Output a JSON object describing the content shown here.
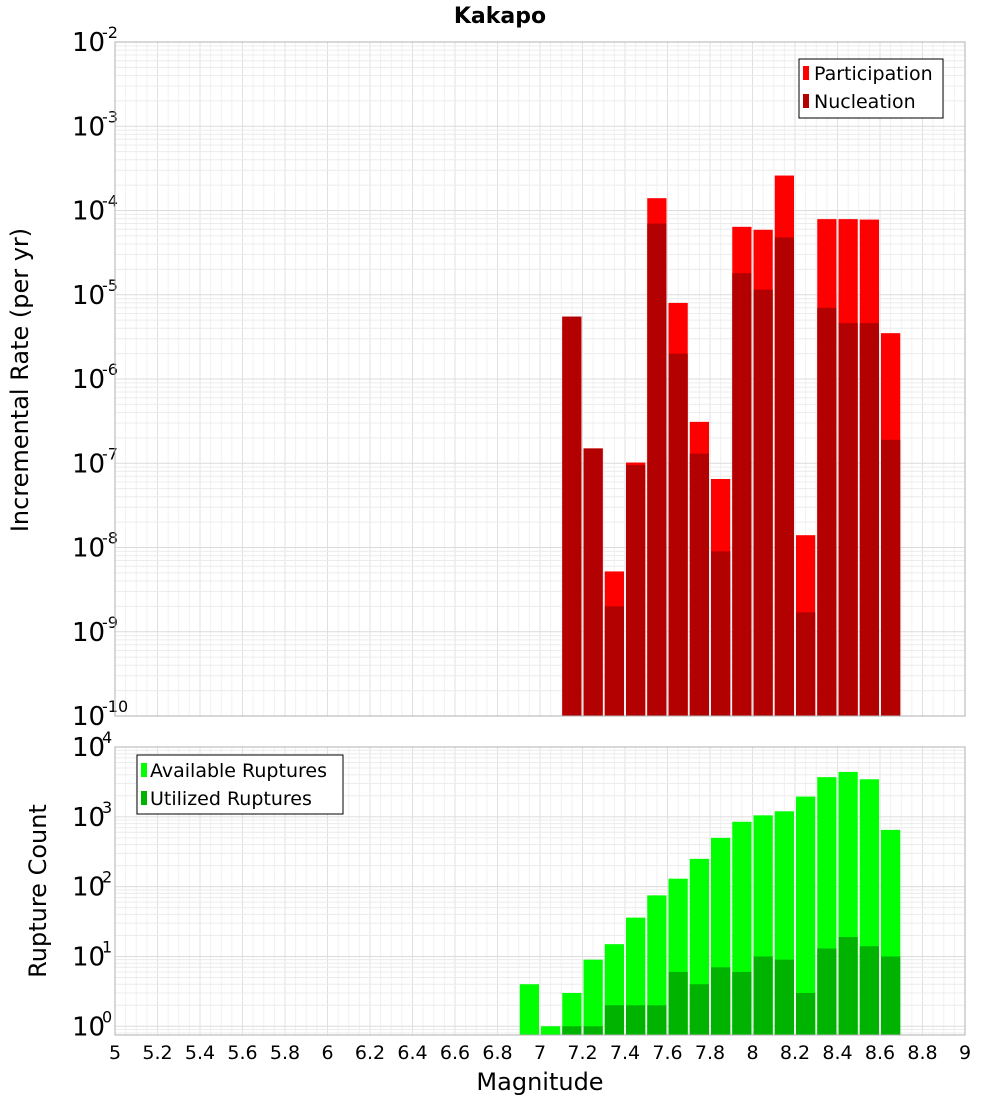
{
  "chart_data": [
    {
      "type": "bar",
      "title": "Kakapo",
      "ylabel": "Incremental Rate (per yr)",
      "yscale": "log",
      "ylim": [
        1e-10,
        0.01
      ],
      "xlim": [
        5,
        9
      ],
      "grid": true,
      "legend_position": "top-right",
      "bar_width": 0.1,
      "x": [
        7.15,
        7.25,
        7.35,
        7.45,
        7.55,
        7.65,
        7.75,
        7.85,
        7.95,
        8.05,
        8.15,
        8.25,
        8.35,
        8.45,
        8.55,
        8.65
      ],
      "series": [
        {
          "name": "Participation",
          "color": "#ff0000",
          "values": [
            5.5e-06,
            1.5e-07,
            5.2e-09,
            1.02e-07,
            0.00014,
            8e-06,
            3.1e-07,
            6.5e-08,
            6.4e-05,
            5.9e-05,
            0.00026,
            1.4e-08,
            7.9e-05,
            7.9e-05,
            7.8e-05,
            3.5e-06
          ]
        },
        {
          "name": "Nucleation",
          "color": "#b30000",
          "values": [
            5.5e-06,
            1.5e-07,
            2e-09,
            9.5e-08,
            7e-05,
            2e-06,
            1.3e-07,
            9e-09,
            1.8e-05,
            1.15e-05,
            4.8e-05,
            1.7e-09,
            7e-06,
            4.6e-06,
            4.6e-06,
            1.9e-07
          ]
        }
      ]
    },
    {
      "type": "bar",
      "xlabel": "Magnitude",
      "ylabel": "Rupture Count",
      "yscale": "log",
      "ylim": [
        0.75,
        10000
      ],
      "xlim": [
        5,
        9
      ],
      "xticks": [
        "5",
        "5.2",
        "5.4",
        "5.6",
        "5.8",
        "6",
        "6.2",
        "6.4",
        "6.6",
        "6.8",
        "7",
        "7.2",
        "7.4",
        "7.6",
        "7.8",
        "8",
        "8.2",
        "8.4",
        "8.6",
        "8.8",
        "9"
      ],
      "grid": true,
      "legend_position": "top-left",
      "bar_width": 0.1,
      "x": [
        6.95,
        7.05,
        7.15,
        7.25,
        7.35,
        7.45,
        7.55,
        7.65,
        7.75,
        7.85,
        7.95,
        8.05,
        8.15,
        8.25,
        8.35,
        8.45,
        8.55,
        8.65
      ],
      "series": [
        {
          "name": "Available Ruptures",
          "color": "#00ff00",
          "values": [
            4,
            1,
            3,
            9,
            15,
            36,
            75,
            130,
            250,
            500,
            850,
            1050,
            1200,
            1950,
            3700,
            4400,
            3450,
            650
          ]
        },
        {
          "name": "Utilized Ruptures",
          "color": "#00b300",
          "values": [
            0,
            0,
            1,
            1,
            2,
            2,
            2,
            6,
            4,
            7,
            6,
            10,
            9,
            3,
            13,
            19,
            14,
            10
          ]
        }
      ]
    }
  ]
}
